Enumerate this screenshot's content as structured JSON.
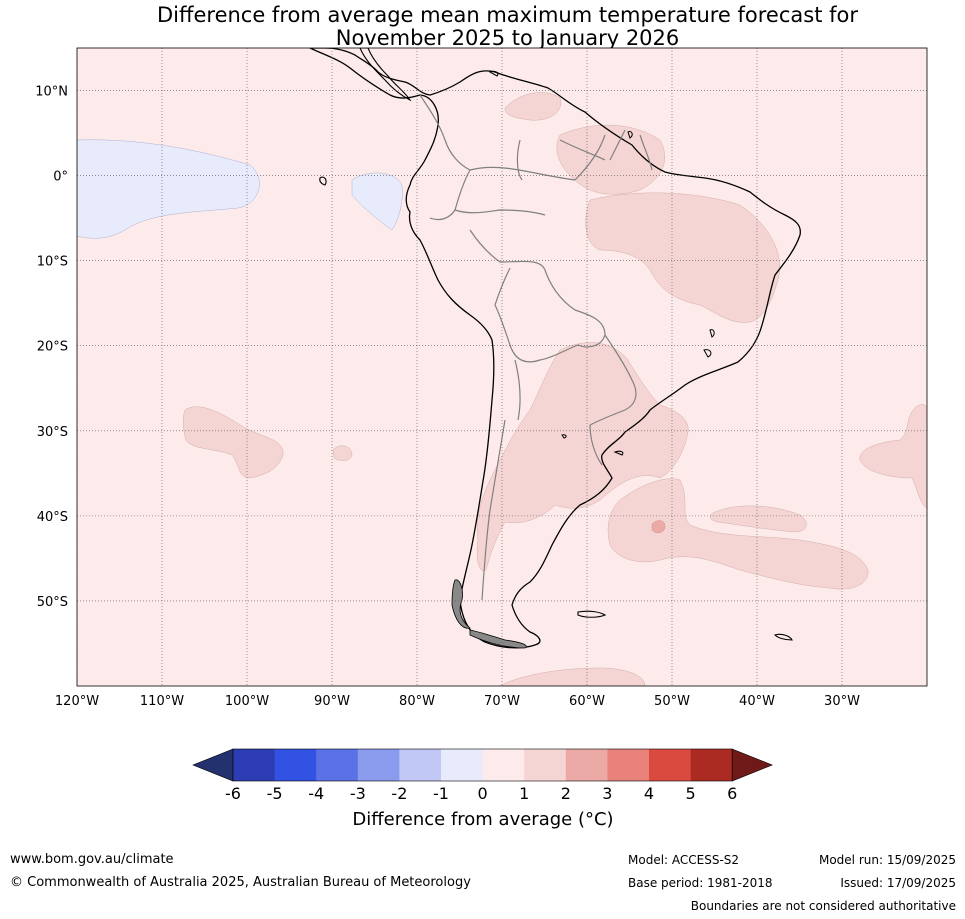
{
  "title": {
    "line1": "Difference from average mean maximum temperature forecast for",
    "line2": "November 2025 to January 2026"
  },
  "map": {
    "lon_range": [
      -120,
      -20
    ],
    "lat_range": [
      -60,
      15
    ],
    "lat_ticks": [
      {
        "value": 10,
        "label": "10°N"
      },
      {
        "value": 0,
        "label": "0°"
      },
      {
        "value": -10,
        "label": "10°S"
      },
      {
        "value": -20,
        "label": "20°S"
      },
      {
        "value": -30,
        "label": "30°S"
      },
      {
        "value": -40,
        "label": "40°S"
      },
      {
        "value": -50,
        "label": "50°S"
      }
    ],
    "lon_ticks": [
      {
        "value": -120,
        "label": "120°W"
      },
      {
        "value": -110,
        "label": "110°W"
      },
      {
        "value": -100,
        "label": "100°W"
      },
      {
        "value": -90,
        "label": "90°W"
      },
      {
        "value": -80,
        "label": "80°W"
      },
      {
        "value": -70,
        "label": "70°W"
      },
      {
        "value": -60,
        "label": "60°W"
      },
      {
        "value": -50,
        "label": "50°W"
      },
      {
        "value": -40,
        "label": "40°W"
      },
      {
        "value": -30,
        "label": "30°W"
      }
    ],
    "background_class_color": "#fcebea",
    "colors": {
      "0_to_1": "#fcebea",
      "1_to_2": "#f5d5d3",
      "2_to_3": "#ecaaa6",
      "-1_to_0": "#e8ebfb"
    }
  },
  "colorbar": {
    "ticks": [
      "-6",
      "-5",
      "-4",
      "-3",
      "-2",
      "-1",
      "0",
      "1",
      "2",
      "3",
      "4",
      "5",
      "6"
    ],
    "colors": [
      "#23316f",
      "#2c3cb2",
      "#3152e2",
      "#5b72e6",
      "#8a9bee",
      "#c2c8f5",
      "#e8ebfb",
      "#fcebea",
      "#f5d5d3",
      "#ecaaa6",
      "#e8827b",
      "#db4a3f",
      "#ab2a22",
      "#6f1a18"
    ],
    "label": "Difference from average (°C)"
  },
  "footer": {
    "website": "www.bom.gov.au/climate",
    "copyright": "© Commonwealth of Australia 2025, Australian Bureau of Meteorology",
    "model": "Model: ACCESS-S2",
    "base_period": "Base period: 1981-2018",
    "model_run": "Model run: 15/09/2025",
    "issued": "Issued: 17/09/2025",
    "disclaimer": "Boundaries are not considered authoritative"
  }
}
